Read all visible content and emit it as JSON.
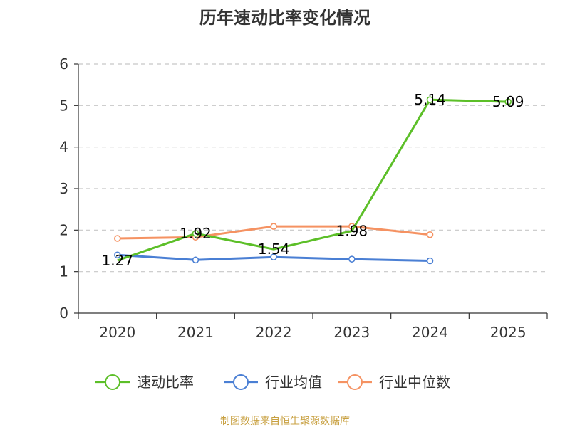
{
  "chart_data": {
    "type": "line",
    "title": "历年速动比率变化情况",
    "categories": [
      "2020",
      "2021",
      "2022",
      "2023",
      "2024",
      "2025"
    ],
    "ylim": [
      0,
      6
    ],
    "yticks": [
      "0",
      "1",
      "2",
      "3",
      "4",
      "5",
      "6"
    ],
    "grid": true,
    "legend_position": "bottom",
    "series": [
      {
        "name": "速动比率",
        "color": "#5cbf28",
        "values": [
          1.27,
          1.92,
          1.54,
          1.98,
          5.14,
          5.09
        ],
        "labels": [
          "1.27",
          "1.92",
          "1.54",
          "1.98",
          "5.14",
          "5.09"
        ],
        "markers": "partial"
      },
      {
        "name": "行业均值",
        "color": "#4a7fd4",
        "values": [
          1.4,
          1.28,
          1.35,
          1.3,
          1.26,
          null
        ],
        "labels": null
      },
      {
        "name": "行业中位数",
        "color": "#f59262",
        "values": [
          1.8,
          1.83,
          2.09,
          2.09,
          1.89,
          null
        ],
        "labels": null
      }
    ],
    "source": "制图数据来自恒生聚源数据库"
  }
}
